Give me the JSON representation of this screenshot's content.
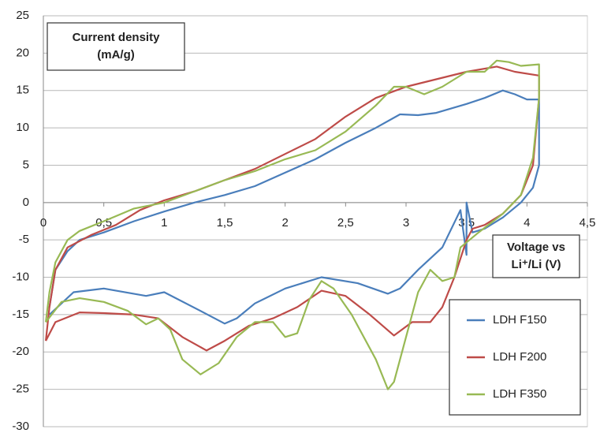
{
  "chart_data": {
    "type": "line",
    "ylabel": [
      "Current density",
      "(mA/g)"
    ],
    "xlabel": [
      "Voltage vs",
      "Li⁺/Li (V)"
    ],
    "xlim": [
      0,
      4.5
    ],
    "xticks": [
      0,
      {
        "value": 0.5,
        "label": "0,5"
      },
      1,
      {
        "value": 1.5,
        "label": "1,5"
      },
      2,
      {
        "value": 2.5,
        "label": "2,5"
      },
      3,
      {
        "value": 3.5,
        "label": "3,5"
      },
      4,
      {
        "value": 4.5,
        "label": "4,5"
      }
    ],
    "ylim": [
      -30,
      25
    ],
    "yticks": [
      -30,
      -25,
      -20,
      -15,
      -10,
      -5,
      0,
      5,
      10,
      15,
      20,
      25
    ],
    "grid": true,
    "legend": "lower right",
    "series": [
      {
        "name": "LDH F150",
        "color": "#4a7ebb",
        "x": [
          0.05,
          0.1,
          0.2,
          0.3,
          0.5,
          0.75,
          1,
          1.25,
          1.5,
          1.75,
          2,
          2.25,
          2.5,
          2.75,
          2.95,
          3.1,
          3.25,
          3.5,
          3.65,
          3.8,
          3.9,
          4,
          4.1,
          4.1,
          4.05,
          3.95,
          3.8,
          3.65,
          3.55,
          3.5,
          3.5,
          3.45,
          3.3,
          3.1,
          2.95,
          2.85,
          2.6,
          2.3,
          2,
          1.75,
          1.6,
          1.5,
          1.3,
          1,
          0.85,
          0.5,
          0.25,
          0.05
        ],
        "values": [
          -14,
          -9,
          -6.5,
          -5,
          -4,
          -2.5,
          -1.2,
          0,
          1,
          2.2,
          4,
          5.8,
          8,
          10,
          11.8,
          11.7,
          12,
          13.2,
          14,
          15,
          14.5,
          13.8,
          13.8,
          5,
          2,
          0,
          -2,
          -3.5,
          -4,
          0,
          -7,
          -1,
          -6,
          -9,
          -11.5,
          -12.2,
          -10.8,
          -10,
          -11.5,
          -13.5,
          -15.5,
          -16.2,
          -14.5,
          -12,
          -12.5,
          -11.5,
          -12,
          -15
        ]
      },
      {
        "name": "LDH F200",
        "color": "#be4b48",
        "x": [
          0.02,
          0.05,
          0.1,
          0.2,
          0.4,
          0.6,
          0.8,
          1,
          1.25,
          1.5,
          1.75,
          2,
          2.25,
          2.5,
          2.75,
          3,
          3.25,
          3.5,
          3.75,
          3.9,
          4.1,
          4.1,
          4.05,
          3.95,
          3.8,
          3.65,
          3.55,
          3.5,
          3.4,
          3.3,
          3.2,
          3.05,
          2.9,
          2.7,
          2.5,
          2.3,
          2.1,
          1.9,
          1.7,
          1.5,
          1.35,
          1.15,
          0.95,
          0.75,
          0.5,
          0.3,
          0.1,
          0.02
        ],
        "values": [
          -18.5,
          -14,
          -9,
          -6,
          -4.3,
          -3,
          -1,
          0.3,
          1.5,
          3,
          4.5,
          6.5,
          8.5,
          11.5,
          14,
          15.5,
          16.5,
          17.5,
          18.2,
          17.5,
          17,
          14,
          5,
          1,
          -1.5,
          -3,
          -3.5,
          -5,
          -10,
          -14,
          -16,
          -16,
          -17.8,
          -15,
          -12.5,
          -11.8,
          -14,
          -15.5,
          -16.5,
          -18.5,
          -19.8,
          -18,
          -15.5,
          -15,
          -14.8,
          -14.7,
          -16,
          -18.5
        ]
      },
      {
        "name": "LDH F350",
        "color": "#98b954",
        "x": [
          0.02,
          0.05,
          0.1,
          0.2,
          0.3,
          0.5,
          0.75,
          1,
          1.25,
          1.5,
          1.75,
          2,
          2.25,
          2.5,
          2.75,
          2.9,
          3,
          3.15,
          3.3,
          3.5,
          3.65,
          3.75,
          3.85,
          3.95,
          4.1,
          4.1,
          4.05,
          3.95,
          3.8,
          3.6,
          3.45,
          3.4,
          3.3,
          3.2,
          3.1,
          3,
          2.9,
          2.85,
          2.75,
          2.55,
          2.4,
          2.3,
          2.2,
          2.1,
          2,
          1.9,
          1.75,
          1.6,
          1.45,
          1.3,
          1.15,
          1.05,
          0.95,
          0.85,
          0.7,
          0.5,
          0.3,
          0.15,
          0.02
        ],
        "values": [
          -16,
          -12,
          -8,
          -5,
          -3.8,
          -2.5,
          -0.8,
          0,
          1.5,
          3,
          4.2,
          5.8,
          7,
          9.5,
          13,
          15.5,
          15.5,
          14.5,
          15.5,
          17.5,
          17.5,
          19,
          18.8,
          18.3,
          18.5,
          14,
          6,
          1,
          -1.5,
          -4,
          -6,
          -10,
          -10.5,
          -9,
          -12,
          -18,
          -24,
          -25,
          -21,
          -15,
          -11.5,
          -10.5,
          -13,
          -17.5,
          -18,
          -16,
          -16,
          -18,
          -21.5,
          -23,
          -21,
          -17,
          -15.5,
          -16.3,
          -14.5,
          -13.3,
          -12.8,
          -13.3,
          -16
        ]
      }
    ]
  }
}
